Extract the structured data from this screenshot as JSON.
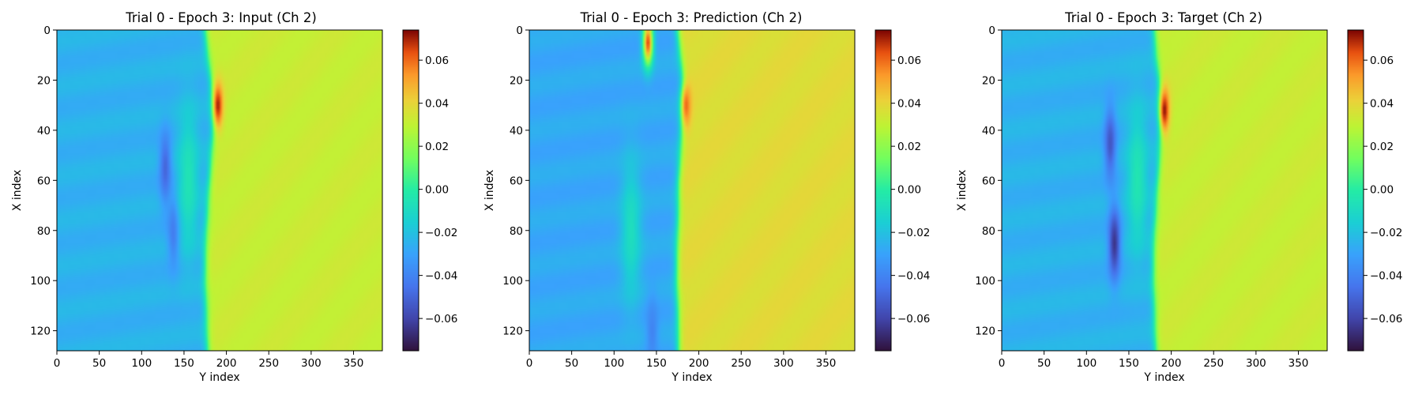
{
  "chart_data": [
    {
      "type": "heatmap",
      "title": "Trial 0 - Epoch 3: Input (Ch 2)",
      "xlabel": "Y index",
      "ylabel": "X index",
      "xlim": [
        0,
        384
      ],
      "ylim": [
        128,
        0
      ],
      "xticks": [
        0,
        50,
        100,
        150,
        200,
        250,
        300,
        350
      ],
      "yticks": [
        0,
        20,
        40,
        60,
        80,
        100,
        120
      ],
      "colormap": "turbo",
      "colorbar": {
        "vmin": -0.075,
        "vmax": 0.074,
        "ticks": [
          -0.06,
          -0.04,
          -0.02,
          0.0,
          0.02,
          0.04,
          0.06
        ],
        "tick_labels": [
          "−0.06",
          "−0.04",
          "−0.02",
          "0.00",
          "0.02",
          "0.04",
          "0.06"
        ]
      },
      "field": {
        "left_value": -0.025,
        "right_value": 0.032,
        "front_y": [
          175,
          178,
          182,
          185,
          185,
          182,
          180,
          178,
          176,
          175,
          175,
          176,
          177,
          178
        ],
        "front_x": [
          0,
          10,
          20,
          30,
          40,
          50,
          60,
          70,
          80,
          90,
          100,
          110,
          120,
          128
        ],
        "features": [
          {
            "kind": "blue_lens",
            "y": 128,
            "x": 55,
            "value": -0.05
          },
          {
            "kind": "blue_lens",
            "y": 138,
            "x": 80,
            "value": -0.045
          },
          {
            "kind": "red_peak",
            "y": 190,
            "x": 30,
            "value": 0.07
          },
          {
            "kind": "green_band",
            "y": 155,
            "x": 60,
            "value": -0.005
          }
        ]
      }
    },
    {
      "type": "heatmap",
      "title": "Trial 0 - Epoch 3: Prediction (Ch 2)",
      "xlabel": "Y index",
      "ylabel": "X index",
      "xlim": [
        0,
        384
      ],
      "ylim": [
        128,
        0
      ],
      "xticks": [
        0,
        50,
        100,
        150,
        200,
        250,
        300,
        350
      ],
      "yticks": [
        0,
        20,
        40,
        60,
        80,
        100,
        120
      ],
      "colormap": "turbo",
      "colorbar": {
        "vmin": -0.075,
        "vmax": 0.074,
        "ticks": [
          -0.06,
          -0.04,
          -0.02,
          0.0,
          0.02,
          0.04,
          0.06
        ],
        "tick_labels": [
          "−0.06",
          "−0.04",
          "−0.02",
          "0.00",
          "0.02",
          "0.04",
          "0.06"
        ]
      },
      "field": {
        "left_value": -0.028,
        "right_value": 0.038,
        "front_y": [
          175,
          178,
          182,
          182,
          180,
          178,
          176,
          176,
          175,
          174,
          174,
          175,
          176,
          176
        ],
        "front_x": [
          0,
          10,
          20,
          30,
          40,
          50,
          60,
          70,
          80,
          90,
          100,
          110,
          120,
          128
        ],
        "features": [
          {
            "kind": "red_peak",
            "y": 140,
            "x": 5,
            "value": 0.065
          },
          {
            "kind": "red_peak",
            "y": 185,
            "x": 30,
            "value": 0.06
          },
          {
            "kind": "blue_lens",
            "y": 145,
            "x": 120,
            "value": -0.04
          },
          {
            "kind": "green_band",
            "y": 120,
            "x": 80,
            "value": -0.008
          }
        ]
      }
    },
    {
      "type": "heatmap",
      "title": "Trial 0 - Epoch 3: Target (Ch 2)",
      "xlabel": "Y index",
      "ylabel": "X index",
      "xlim": [
        0,
        384
      ],
      "ylim": [
        128,
        0
      ],
      "xticks": [
        0,
        50,
        100,
        150,
        200,
        250,
        300,
        350
      ],
      "yticks": [
        0,
        20,
        40,
        60,
        80,
        100,
        120
      ],
      "colormap": "turbo",
      "colorbar": {
        "vmin": -0.075,
        "vmax": 0.074,
        "ticks": [
          -0.06,
          -0.04,
          -0.02,
          0.0,
          0.02,
          0.04,
          0.06
        ],
        "tick_labels": [
          "−0.06",
          "−0.04",
          "−0.02",
          "0.00",
          "0.02",
          "0.04",
          "0.06"
        ]
      },
      "field": {
        "left_value": -0.025,
        "right_value": 0.032,
        "front_y": [
          180,
          182,
          186,
          188,
          188,
          186,
          184,
          182,
          180,
          179,
          179,
          180,
          181,
          182
        ],
        "front_x": [
          0,
          10,
          20,
          30,
          40,
          50,
          60,
          70,
          80,
          90,
          100,
          110,
          120,
          128
        ],
        "features": [
          {
            "kind": "blue_lens",
            "y": 128,
            "x": 45,
            "value": -0.055
          },
          {
            "kind": "blue_lens",
            "y": 133,
            "x": 85,
            "value": -0.065
          },
          {
            "kind": "red_peak",
            "y": 192,
            "x": 32,
            "value": 0.072
          },
          {
            "kind": "green_band",
            "y": 160,
            "x": 60,
            "value": -0.004
          }
        ]
      }
    }
  ]
}
